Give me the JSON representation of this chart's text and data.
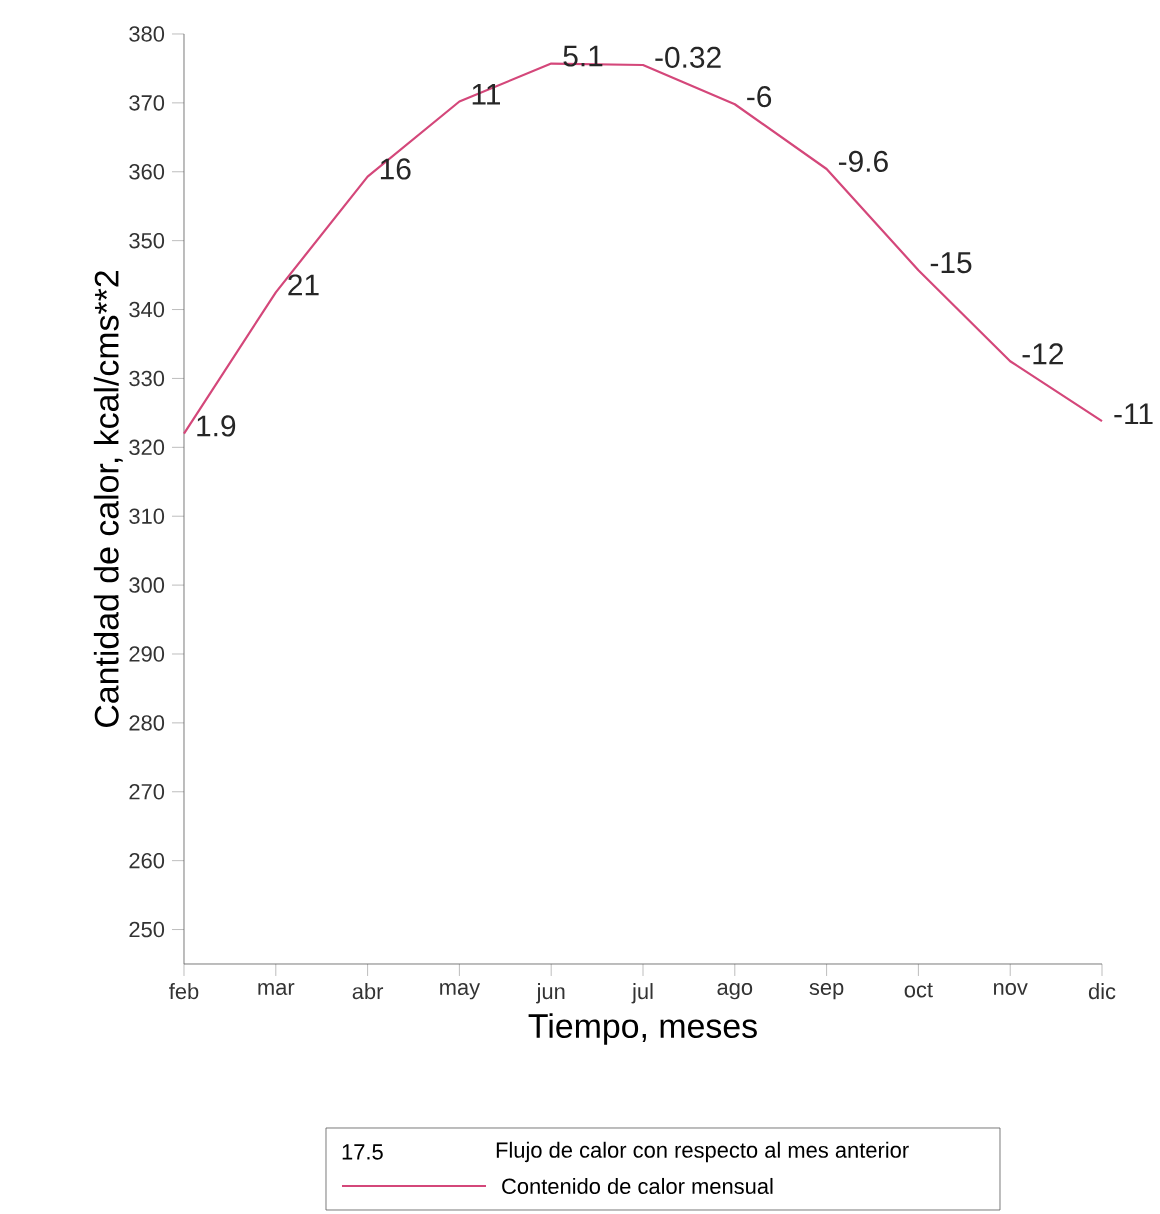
{
  "chart_data": {
    "type": "line",
    "xlabel": "Tiempo, meses",
    "ylabel": "Cantidad de calor, kcal/cms**2",
    "categories": [
      "feb",
      "mar",
      "abr",
      "may",
      "jun",
      "jul",
      "ago",
      "sep",
      "oct",
      "nov",
      "dic"
    ],
    "series": [
      {
        "name": "Contenido de calor mensual",
        "color": "#d4477a",
        "values": [
          322,
          342.5,
          359.3,
          370.2,
          375.7,
          375.5,
          369.8,
          360.4,
          345.7,
          332.5,
          323.8
        ]
      }
    ],
    "ylim": [
      245,
      380
    ],
    "yticks": [
      250,
      260,
      270,
      280,
      290,
      300,
      310,
      320,
      330,
      340,
      350,
      360,
      370,
      380
    ],
    "legend": "bottom",
    "annotations": [
      "17.5",
      "Flujo de calor con respecto al mes anterior",
      {
        "text": "1.9",
        "x": "feb",
        "y": 322
      },
      {
        "text": "21",
        "x": "mar",
        "y": 342.5
      },
      {
        "text": "16",
        "x": "abr",
        "y": 359.3
      },
      {
        "text": "11",
        "x": "may",
        "y": 370.2
      },
      {
        "text": "5.1",
        "x": "jun",
        "y": 375.7
      },
      {
        "text": "-0.32",
        "x": "jul",
        "y": 375.5
      },
      {
        "text": "-6",
        "x": "ago",
        "y": 369.8
      },
      {
        "text": "-9.6",
        "x": "sep",
        "y": 360.4
      },
      {
        "text": "-15",
        "x": "oct",
        "y": 345.7
      },
      {
        "text": "-12",
        "x": "nov",
        "y": 332.5
      },
      {
        "text": "-11",
        "x": "dic",
        "y": 323.8
      }
    ]
  }
}
